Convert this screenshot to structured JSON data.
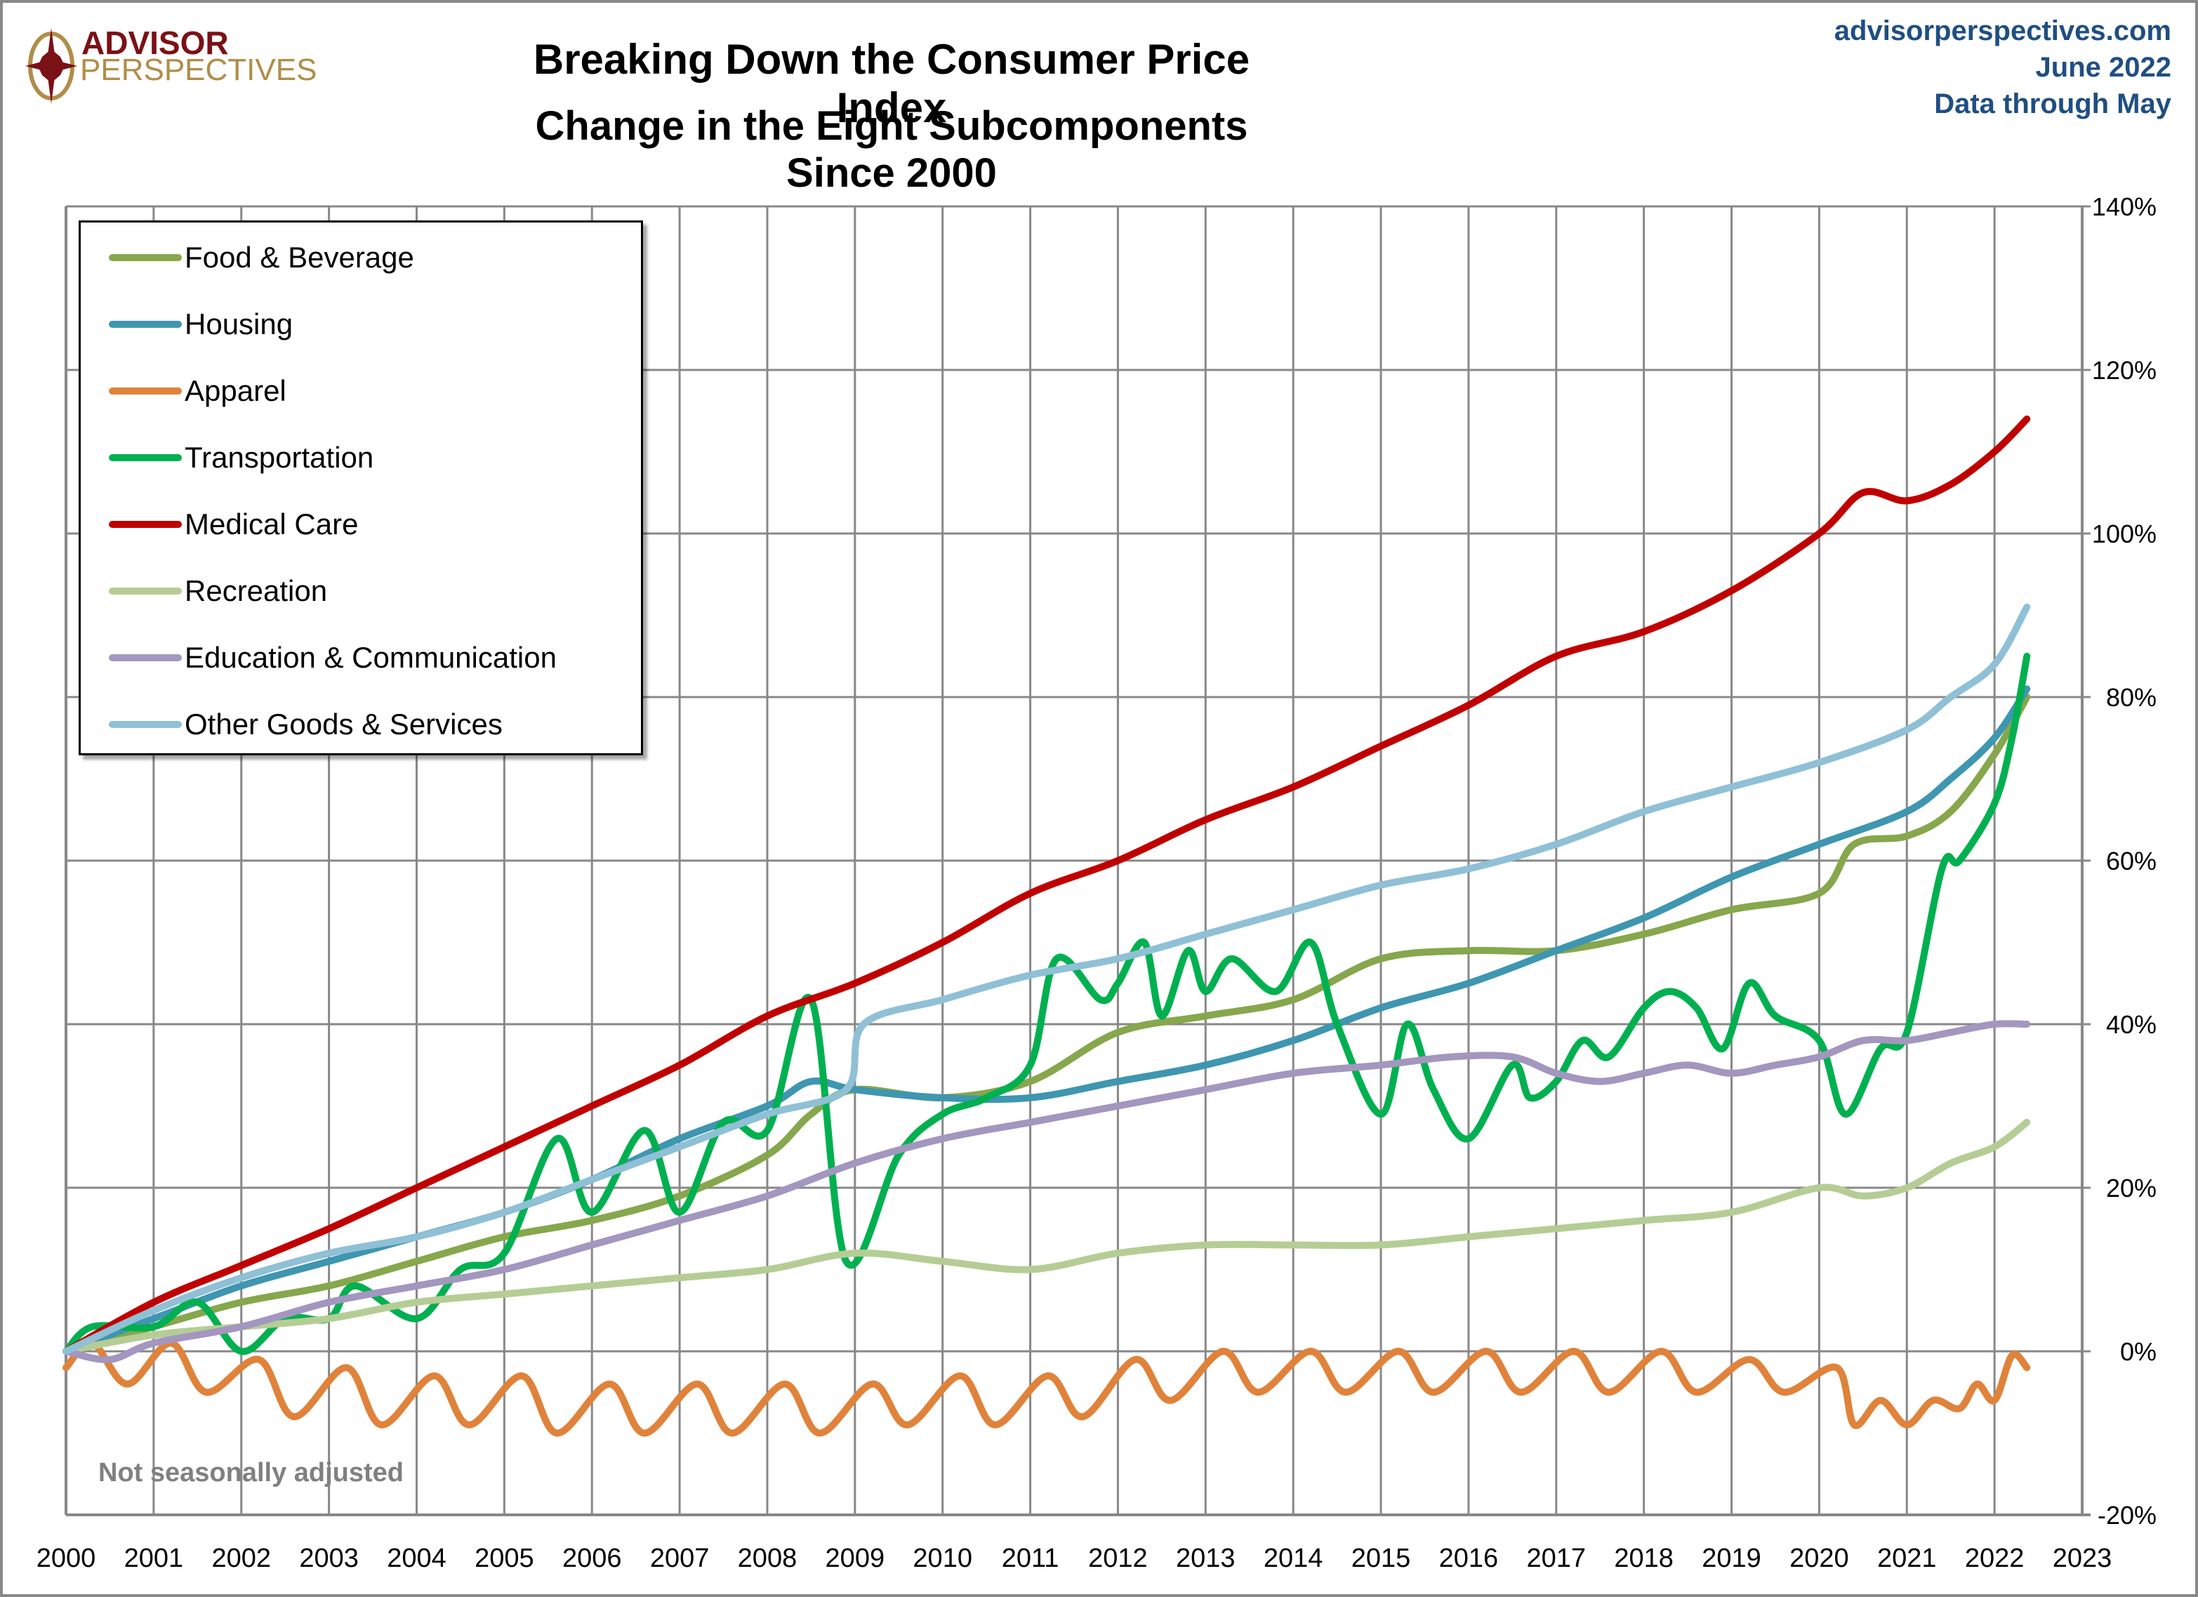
{
  "branding": {
    "logo_line1": "ADVISOR",
    "logo_line2": "PERSPECTIVES",
    "logo_icon": "compass-star-icon",
    "brand_colors": {
      "primary": "#7a1116",
      "secondary": "#b08d48"
    }
  },
  "header": {
    "title": "Breaking Down the Consumer Price Index",
    "subtitle": "Change in the Eight Subcomponents Since 2000",
    "source_site": "advisorperspectives.com",
    "source_date": "June 2022",
    "source_note": "Data through May",
    "source_color": "#1f4e82"
  },
  "note": "Not seasonally adjusted",
  "chart_data": {
    "type": "line",
    "title": "Breaking Down the Consumer Price Index",
    "subtitle": "Change in the Eight Subcomponents Since 2000",
    "xlabel": "",
    "ylabel": "",
    "xlim": [
      2000,
      2023
    ],
    "ylim": [
      -20,
      140
    ],
    "x_ticks": [
      "2000",
      "2001",
      "2002",
      "2003",
      "2004",
      "2005",
      "2006",
      "2007",
      "2008",
      "2009",
      "2010",
      "2011",
      "2012",
      "2013",
      "2014",
      "2015",
      "2016",
      "2017",
      "2018",
      "2019",
      "2020",
      "2021",
      "2022",
      "2023"
    ],
    "y_ticks": [
      "140%",
      "120%",
      "100%",
      "80%",
      "60%",
      "40%",
      "20%",
      "0%",
      "-20%"
    ],
    "y_tick_values": [
      140,
      120,
      100,
      80,
      60,
      40,
      20,
      0,
      -20
    ],
    "y_axis_side": "right",
    "grid": true,
    "legend_position": "top-left",
    "series": [
      {
        "name": "Food & Beverage",
        "color": "#86a74c",
        "points": [
          [
            2000,
            0
          ],
          [
            2001,
            3
          ],
          [
            2002,
            6
          ],
          [
            2003,
            8
          ],
          [
            2004,
            11
          ],
          [
            2005,
            14
          ],
          [
            2006,
            16
          ],
          [
            2007,
            19
          ],
          [
            2008,
            24
          ],
          [
            2008.5,
            29
          ],
          [
            2009,
            32
          ],
          [
            2010,
            31
          ],
          [
            2011,
            33
          ],
          [
            2012,
            39
          ],
          [
            2013,
            41
          ],
          [
            2014,
            43
          ],
          [
            2015,
            48
          ],
          [
            2016,
            49
          ],
          [
            2017,
            49
          ],
          [
            2018,
            51
          ],
          [
            2019,
            54
          ],
          [
            2020,
            56
          ],
          [
            2020.4,
            62
          ],
          [
            2021,
            63
          ],
          [
            2021.5,
            66
          ],
          [
            2022,
            73
          ],
          [
            2022.37,
            80
          ]
        ]
      },
      {
        "name": "Housing",
        "color": "#3e96b0",
        "points": [
          [
            2000,
            0
          ],
          [
            2001,
            4
          ],
          [
            2002,
            8
          ],
          [
            2003,
            11
          ],
          [
            2004,
            14
          ],
          [
            2005,
            17
          ],
          [
            2006,
            21
          ],
          [
            2007,
            26
          ],
          [
            2008,
            30
          ],
          [
            2008.5,
            33
          ],
          [
            2009,
            32
          ],
          [
            2010,
            31
          ],
          [
            2011,
            31
          ],
          [
            2012,
            33
          ],
          [
            2013,
            35
          ],
          [
            2014,
            38
          ],
          [
            2015,
            42
          ],
          [
            2016,
            45
          ],
          [
            2017,
            49
          ],
          [
            2018,
            53
          ],
          [
            2019,
            58
          ],
          [
            2020,
            62
          ],
          [
            2021,
            66
          ],
          [
            2021.5,
            70
          ],
          [
            2022,
            75
          ],
          [
            2022.37,
            81
          ]
        ]
      },
      {
        "name": "Apparel",
        "color": "#e0823a",
        "points": [
          [
            2000,
            -2
          ],
          [
            2000.3,
            1
          ],
          [
            2000.7,
            -4
          ],
          [
            2001.2,
            1
          ],
          [
            2001.6,
            -5
          ],
          [
            2002.2,
            -1
          ],
          [
            2002.6,
            -8
          ],
          [
            2003.2,
            -2
          ],
          [
            2003.6,
            -9
          ],
          [
            2004.2,
            -3
          ],
          [
            2004.6,
            -9
          ],
          [
            2005.2,
            -3
          ],
          [
            2005.6,
            -10
          ],
          [
            2006.2,
            -4
          ],
          [
            2006.6,
            -10
          ],
          [
            2007.2,
            -4
          ],
          [
            2007.6,
            -10
          ],
          [
            2008.2,
            -4
          ],
          [
            2008.6,
            -10
          ],
          [
            2009.2,
            -4
          ],
          [
            2009.6,
            -9
          ],
          [
            2010.2,
            -3
          ],
          [
            2010.6,
            -9
          ],
          [
            2011.2,
            -3
          ],
          [
            2011.6,
            -8
          ],
          [
            2012.2,
            -1
          ],
          [
            2012.6,
            -6
          ],
          [
            2013.2,
            0
          ],
          [
            2013.6,
            -5
          ],
          [
            2014.2,
            0
          ],
          [
            2014.6,
            -5
          ],
          [
            2015.2,
            0
          ],
          [
            2015.6,
            -5
          ],
          [
            2016.2,
            0
          ],
          [
            2016.6,
            -5
          ],
          [
            2017.2,
            0
          ],
          [
            2017.6,
            -5
          ],
          [
            2018.2,
            0
          ],
          [
            2018.6,
            -5
          ],
          [
            2019.2,
            -1
          ],
          [
            2019.6,
            -5
          ],
          [
            2020.2,
            -2
          ],
          [
            2020.4,
            -9
          ],
          [
            2020.7,
            -6
          ],
          [
            2021,
            -9
          ],
          [
            2021.3,
            -6
          ],
          [
            2021.6,
            -7
          ],
          [
            2021.8,
            -4
          ],
          [
            2022,
            -6
          ],
          [
            2022.2,
            -0.5
          ],
          [
            2022.37,
            -2
          ]
        ]
      },
      {
        "name": "Transportation",
        "color": "#00b050",
        "points": [
          [
            2000,
            0
          ],
          [
            2000.3,
            3
          ],
          [
            2001,
            3
          ],
          [
            2001.5,
            6
          ],
          [
            2002,
            0
          ],
          [
            2002.5,
            4
          ],
          [
            2003,
            4
          ],
          [
            2003.3,
            8
          ],
          [
            2004,
            4
          ],
          [
            2004.5,
            10
          ],
          [
            2005,
            12
          ],
          [
            2005.6,
            26
          ],
          [
            2006,
            17
          ],
          [
            2006.6,
            27
          ],
          [
            2007,
            17
          ],
          [
            2007.5,
            28
          ],
          [
            2008,
            27
          ],
          [
            2008.5,
            43
          ],
          [
            2008.9,
            11
          ],
          [
            2009.5,
            24
          ],
          [
            2010,
            29
          ],
          [
            2010.5,
            31
          ],
          [
            2011,
            35
          ],
          [
            2011.3,
            48
          ],
          [
            2011.8,
            43
          ],
          [
            2012,
            45
          ],
          [
            2012.3,
            50
          ],
          [
            2012.5,
            41
          ],
          [
            2012.8,
            49
          ],
          [
            2013,
            44
          ],
          [
            2013.3,
            48
          ],
          [
            2013.8,
            44
          ],
          [
            2014.2,
            50
          ],
          [
            2014.5,
            40
          ],
          [
            2015,
            29
          ],
          [
            2015.3,
            40
          ],
          [
            2015.6,
            32
          ],
          [
            2016,
            26
          ],
          [
            2016.5,
            35
          ],
          [
            2016.7,
            31
          ],
          [
            2017,
            33
          ],
          [
            2017.3,
            38
          ],
          [
            2017.6,
            36
          ],
          [
            2018,
            42
          ],
          [
            2018.3,
            44
          ],
          [
            2018.6,
            42
          ],
          [
            2018.9,
            37
          ],
          [
            2019.2,
            45
          ],
          [
            2019.5,
            41
          ],
          [
            2020,
            38
          ],
          [
            2020.3,
            29
          ],
          [
            2020.7,
            37
          ],
          [
            2021,
            39
          ],
          [
            2021.4,
            59
          ],
          [
            2021.6,
            60
          ],
          [
            2022,
            67
          ],
          [
            2022.2,
            75
          ],
          [
            2022.37,
            85
          ]
        ]
      },
      {
        "name": "Medical Care",
        "color": "#c00000",
        "points": [
          [
            2000,
            0
          ],
          [
            2001,
            6
          ],
          [
            2002,
            10.5
          ],
          [
            2003,
            15
          ],
          [
            2004,
            20
          ],
          [
            2005,
            25
          ],
          [
            2006,
            30
          ],
          [
            2007,
            35
          ],
          [
            2008,
            41
          ],
          [
            2009,
            45
          ],
          [
            2010,
            50
          ],
          [
            2011,
            56
          ],
          [
            2012,
            60
          ],
          [
            2013,
            65
          ],
          [
            2014,
            69
          ],
          [
            2015,
            74
          ],
          [
            2016,
            79
          ],
          [
            2017,
            85
          ],
          [
            2018,
            88
          ],
          [
            2019,
            93
          ],
          [
            2020,
            100
          ],
          [
            2020.5,
            105
          ],
          [
            2021,
            104
          ],
          [
            2021.5,
            106
          ],
          [
            2022,
            110
          ],
          [
            2022.37,
            114
          ]
        ]
      },
      {
        "name": "Recreation",
        "color": "#b5cd95",
        "points": [
          [
            2000,
            0
          ],
          [
            2001,
            2
          ],
          [
            2002,
            3
          ],
          [
            2003,
            4
          ],
          [
            2004,
            6
          ],
          [
            2005,
            7
          ],
          [
            2006,
            8
          ],
          [
            2007,
            9
          ],
          [
            2008,
            10
          ],
          [
            2009,
            12
          ],
          [
            2010,
            11
          ],
          [
            2011,
            10
          ],
          [
            2012,
            12
          ],
          [
            2013,
            13
          ],
          [
            2014,
            13
          ],
          [
            2015,
            13
          ],
          [
            2016,
            14
          ],
          [
            2017,
            15
          ],
          [
            2018,
            16
          ],
          [
            2019,
            17
          ],
          [
            2020,
            20
          ],
          [
            2020.5,
            19
          ],
          [
            2021,
            20
          ],
          [
            2021.5,
            23
          ],
          [
            2022,
            25
          ],
          [
            2022.37,
            28
          ]
        ]
      },
      {
        "name": "Education & Communication",
        "color": "#a396bf",
        "points": [
          [
            2000,
            0
          ],
          [
            2000.5,
            -1
          ],
          [
            2001,
            1
          ],
          [
            2002,
            3
          ],
          [
            2003,
            6
          ],
          [
            2004,
            8
          ],
          [
            2005,
            10
          ],
          [
            2006,
            13
          ],
          [
            2007,
            16
          ],
          [
            2008,
            19
          ],
          [
            2009,
            23
          ],
          [
            2010,
            26
          ],
          [
            2011,
            28
          ],
          [
            2012,
            30
          ],
          [
            2013,
            32
          ],
          [
            2014,
            34
          ],
          [
            2015,
            35
          ],
          [
            2015.8,
            36
          ],
          [
            2016.5,
            36
          ],
          [
            2017,
            34
          ],
          [
            2017.5,
            33
          ],
          [
            2018,
            34
          ],
          [
            2018.5,
            35
          ],
          [
            2019,
            34
          ],
          [
            2019.5,
            35
          ],
          [
            2020,
            36
          ],
          [
            2020.5,
            38
          ],
          [
            2021,
            38
          ],
          [
            2021.5,
            39
          ],
          [
            2022,
            40
          ],
          [
            2022.37,
            40
          ]
        ]
      },
      {
        "name": "Other Goods & Services",
        "color": "#8fc0d6",
        "points": [
          [
            2000,
            0
          ],
          [
            2001,
            5
          ],
          [
            2002,
            9
          ],
          [
            2003,
            12
          ],
          [
            2004,
            14
          ],
          [
            2005,
            17
          ],
          [
            2006,
            21
          ],
          [
            2007,
            25
          ],
          [
            2008,
            29
          ],
          [
            2008.9,
            32
          ],
          [
            2009.1,
            40
          ],
          [
            2010,
            43
          ],
          [
            2011,
            46
          ],
          [
            2012,
            48
          ],
          [
            2013,
            51
          ],
          [
            2014,
            54
          ],
          [
            2015,
            57
          ],
          [
            2016,
            59
          ],
          [
            2017,
            62
          ],
          [
            2018,
            66
          ],
          [
            2019,
            69
          ],
          [
            2020,
            72
          ],
          [
            2021,
            76
          ],
          [
            2021.5,
            80
          ],
          [
            2022,
            84
          ],
          [
            2022.37,
            91
          ]
        ]
      }
    ]
  }
}
